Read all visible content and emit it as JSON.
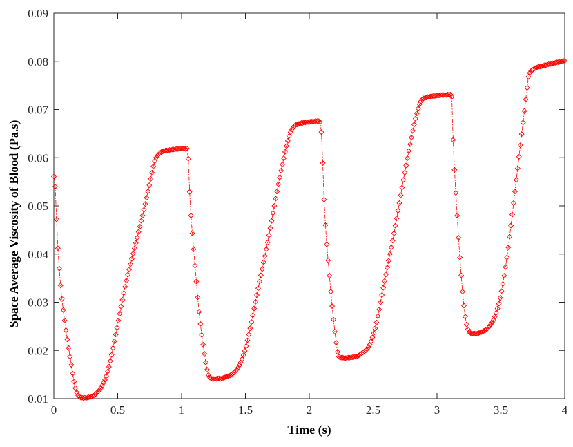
{
  "chart_data": {
    "type": "line",
    "title": "",
    "xlabel": "Time (s)",
    "ylabel": "Space Average Viscosity of Blood (Pa.s)",
    "xlim": [
      0,
      4
    ],
    "ylim": [
      0.01,
      0.09
    ],
    "x_ticks": [
      0,
      0.5,
      1,
      1.5,
      2,
      2.5,
      3,
      3.5,
      4
    ],
    "x_tick_labels": [
      "0",
      "0.5",
      "1",
      "1.5",
      "2",
      "2.5",
      "3",
      "3.5",
      "4"
    ],
    "y_ticks": [
      0.01,
      0.02,
      0.03,
      0.04,
      0.05,
      0.06,
      0.07,
      0.08,
      0.09
    ],
    "y_tick_labels": [
      "0.01",
      "0.02",
      "0.03",
      "0.04",
      "0.05",
      "0.06",
      "0.07",
      "0.08",
      "0.09"
    ],
    "grid": false,
    "legend": "none",
    "series": [
      {
        "color": "#ff0000",
        "marker": "diamond",
        "line_style": "dash-dot",
        "sample_step": 0.01,
        "x_range": [
          0,
          4
        ],
        "y": [
          0.0561,
          0.054,
          0.0472,
          0.0412,
          0.037,
          0.0335,
          0.0307,
          0.0284,
          0.0262,
          0.0242,
          0.0223,
          0.0205,
          0.0187,
          0.017,
          0.0152,
          0.0135,
          0.0122,
          0.0113,
          0.0107,
          0.0104,
          0.0102,
          0.0102,
          0.0101,
          0.0102,
          0.0101,
          0.0102,
          0.0103,
          0.0103,
          0.0104,
          0.0106,
          0.0107,
          0.0109,
          0.0112,
          0.0115,
          0.0118,
          0.0122,
          0.0127,
          0.0133,
          0.0139,
          0.0147,
          0.0156,
          0.0166,
          0.0178,
          0.0191,
          0.0205,
          0.0219,
          0.0233,
          0.0247,
          0.0262,
          0.0276,
          0.0291,
          0.0305,
          0.0319,
          0.0332,
          0.0345,
          0.0357,
          0.0368,
          0.0379,
          0.039,
          0.0401,
          0.0412,
          0.0423,
          0.0434,
          0.0446,
          0.0457,
          0.0469,
          0.048,
          0.0492,
          0.0504,
          0.0517,
          0.053,
          0.0543,
          0.0556,
          0.0569,
          0.0582,
          0.0593,
          0.06,
          0.0604,
          0.0607,
          0.061,
          0.0612,
          0.0613,
          0.0614,
          0.0615,
          0.0615,
          0.0615,
          0.0616,
          0.0616,
          0.0617,
          0.0617,
          0.0617,
          0.0618,
          0.0618,
          0.0618,
          0.0619,
          0.0619,
          0.0619,
          0.0619,
          0.0618,
          0.0619,
          0.0598,
          0.0529,
          0.048,
          0.0443,
          0.041,
          0.0376,
          0.0343,
          0.031,
          0.028,
          0.0255,
          0.0232,
          0.0212,
          0.0193,
          0.0175,
          0.016,
          0.0149,
          0.0144,
          0.0142,
          0.0141,
          0.0141,
          0.0141,
          0.0141,
          0.0142,
          0.0142,
          0.0141,
          0.0142,
          0.0143,
          0.0144,
          0.0145,
          0.0146,
          0.0147,
          0.0148,
          0.015,
          0.0152,
          0.0154,
          0.0157,
          0.016,
          0.0164,
          0.0169,
          0.0175,
          0.0182,
          0.019,
          0.0199,
          0.0209,
          0.0221,
          0.0233,
          0.0246,
          0.0259,
          0.0273,
          0.0287,
          0.0301,
          0.0315,
          0.0329,
          0.0343,
          0.0356,
          0.0369,
          0.0383,
          0.0396,
          0.041,
          0.0424,
          0.0439,
          0.0454,
          0.0469,
          0.0485,
          0.05,
          0.0515,
          0.053,
          0.0545,
          0.0559,
          0.0573,
          0.0586,
          0.0599,
          0.0612,
          0.0624,
          0.0635,
          0.0645,
          0.0653,
          0.0659,
          0.0663,
          0.0666,
          0.0668,
          0.0669,
          0.067,
          0.0671,
          0.0672,
          0.0672,
          0.0673,
          0.0673,
          0.0674,
          0.0674,
          0.0674,
          0.0675,
          0.0675,
          0.0675,
          0.0675,
          0.0676,
          0.0676,
          0.0676,
          0.0674,
          0.0653,
          0.0589,
          0.0513,
          0.046,
          0.042,
          0.0387,
          0.0355,
          0.0322,
          0.0292,
          0.0264,
          0.0239,
          0.0216,
          0.0197,
          0.0187,
          0.0185,
          0.0185,
          0.0185,
          0.0184,
          0.0184,
          0.0185,
          0.0185,
          0.0185,
          0.0185,
          0.0186,
          0.0186,
          0.0187,
          0.0187,
          0.0188,
          0.019,
          0.0192,
          0.0194,
          0.0196,
          0.0198,
          0.02,
          0.0203,
          0.0207,
          0.0212,
          0.0219,
          0.0227,
          0.0236,
          0.0246,
          0.0258,
          0.0271,
          0.0285,
          0.03,
          0.0315,
          0.033,
          0.0344,
          0.0358,
          0.0372,
          0.0386,
          0.04,
          0.0414,
          0.0428,
          0.0443,
          0.0459,
          0.0474,
          0.049,
          0.0506,
          0.0522,
          0.0538,
          0.0554,
          0.0569,
          0.0584,
          0.0599,
          0.0614,
          0.0628,
          0.0642,
          0.0656,
          0.0669,
          0.0681,
          0.0692,
          0.0702,
          0.0711,
          0.0717,
          0.0721,
          0.0723,
          0.0724,
          0.0725,
          0.0726,
          0.0726,
          0.0727,
          0.0727,
          0.0728,
          0.0728,
          0.0728,
          0.0729,
          0.0729,
          0.0729,
          0.073,
          0.073,
          0.073,
          0.073,
          0.073,
          0.0731,
          0.0731,
          0.0731,
          0.0726,
          0.0637,
          0.0575,
          0.0527,
          0.048,
          0.0434,
          0.0393,
          0.0356,
          0.0322,
          0.0293,
          0.027,
          0.0254,
          0.0244,
          0.0238,
          0.0236,
          0.0235,
          0.0235,
          0.0235,
          0.0235,
          0.0235,
          0.0236,
          0.0237,
          0.0238,
          0.0239,
          0.0241,
          0.0242,
          0.0244,
          0.0247,
          0.025,
          0.0254,
          0.0258,
          0.0263,
          0.027,
          0.0278,
          0.0287,
          0.0297,
          0.0309,
          0.0323,
          0.0338,
          0.0355,
          0.0373,
          0.0393,
          0.0414,
          0.0436,
          0.0459,
          0.0482,
          0.0506,
          0.053,
          0.0554,
          0.0578,
          0.0602,
          0.0626,
          0.0649,
          0.0673,
          0.0697,
          0.0721,
          0.0745,
          0.0768,
          0.0776,
          0.078,
          0.0782,
          0.0784,
          0.0786,
          0.0787,
          0.0788,
          0.0789,
          0.0789,
          0.079,
          0.0791,
          0.0792,
          0.0792,
          0.0793,
          0.0794,
          0.0794,
          0.0795,
          0.0796,
          0.0796,
          0.0797,
          0.0798,
          0.0798,
          0.0799,
          0.08,
          0.08,
          0.0801,
          0.0801
        ]
      }
    ]
  }
}
